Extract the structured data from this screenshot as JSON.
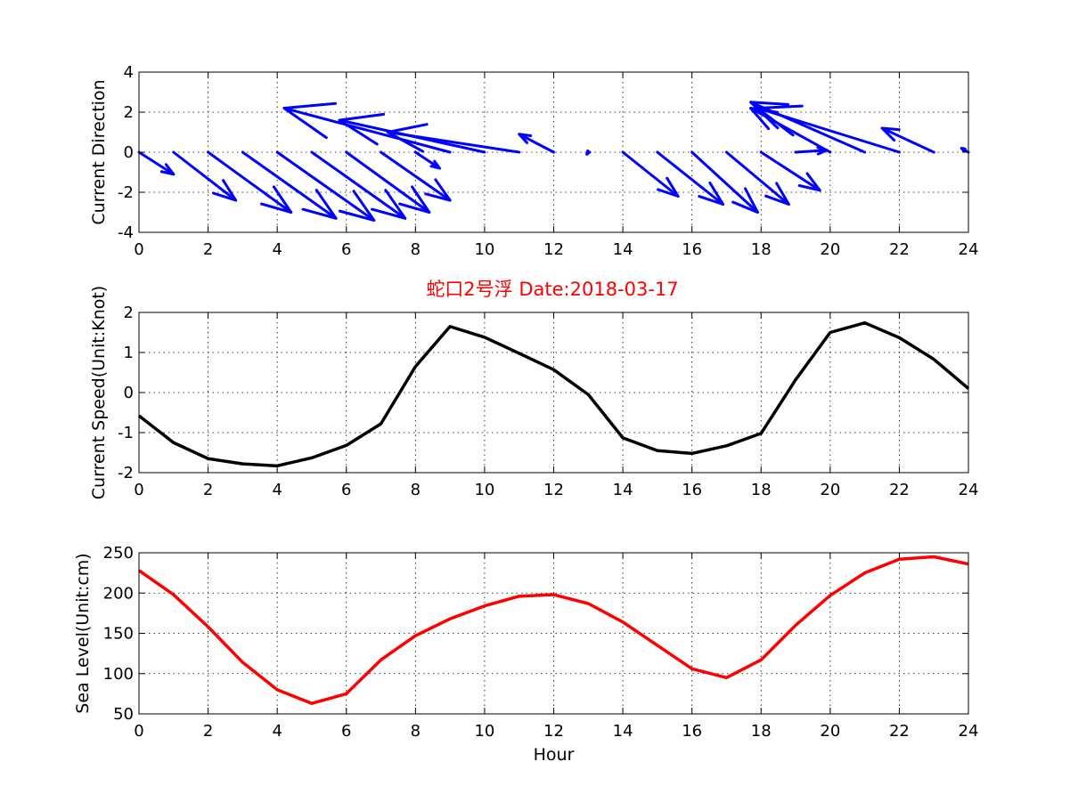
{
  "title": "蛇口2号浮   Date:2018-03-17",
  "colors": {
    "title": "#ff0000",
    "direction": "#0000ff",
    "speed": "#000000",
    "sea_level": "#ff0000"
  },
  "chart_data": [
    {
      "type": "quiver",
      "ylabel": "Current Direction",
      "xlabel": "",
      "xlim": [
        0,
        24
      ],
      "ylim": [
        -4,
        4
      ],
      "xticks": [
        0,
        2,
        4,
        6,
        8,
        10,
        12,
        14,
        16,
        18,
        20,
        22,
        24
      ],
      "yticks": [
        -4,
        -2,
        0,
        2,
        4
      ],
      "grid": true,
      "vectors": [
        {
          "x": 0,
          "u": 1.0,
          "v": -1.1
        },
        {
          "x": 1,
          "u": 1.8,
          "v": -2.4
        },
        {
          "x": 2,
          "u": 2.4,
          "v": -3.0
        },
        {
          "x": 3,
          "u": 2.7,
          "v": -3.3
        },
        {
          "x": 4,
          "u": 2.8,
          "v": -3.4
        },
        {
          "x": 5,
          "u": 2.7,
          "v": -3.3
        },
        {
          "x": 6,
          "u": 2.4,
          "v": -3.0
        },
        {
          "x": 7,
          "u": 2.0,
          "v": -2.4
        },
        {
          "x": 8,
          "u": 0.7,
          "v": -0.8
        },
        {
          "x": 9,
          "u": -4.8,
          "v": 2.2
        },
        {
          "x": 10,
          "u": -4.2,
          "v": 1.6
        },
        {
          "x": 11,
          "u": -3.8,
          "v": 1.0
        },
        {
          "x": 12,
          "u": -1.0,
          "v": 0.9
        },
        {
          "x": 13,
          "u": -0.04,
          "v": -0.1
        },
        {
          "x": 14,
          "u": 1.6,
          "v": -2.2
        },
        {
          "x": 15,
          "u": 1.9,
          "v": -2.6
        },
        {
          "x": 16,
          "u": 1.9,
          "v": -3.0
        },
        {
          "x": 17,
          "u": 1.8,
          "v": -2.6
        },
        {
          "x": 18,
          "u": 1.7,
          "v": -1.9
        },
        {
          "x": 19,
          "u": 0.9,
          "v": 0.1
        },
        {
          "x": 20,
          "u": -2.3,
          "v": 2.2
        },
        {
          "x": 21,
          "u": -3.3,
          "v": 2.5
        },
        {
          "x": 22,
          "u": -4.1,
          "v": 2.2
        },
        {
          "x": 23,
          "u": -1.5,
          "v": 1.2
        },
        {
          "x": 24,
          "u": -0.2,
          "v": 0.2
        }
      ]
    },
    {
      "type": "line",
      "ylabel": "Current Speed(Unit:Knot)",
      "xlabel": "",
      "xlim": [
        0,
        24
      ],
      "ylim": [
        -2,
        2
      ],
      "xticks": [
        0,
        2,
        4,
        6,
        8,
        10,
        12,
        14,
        16,
        18,
        20,
        22,
        24
      ],
      "yticks": [
        -2,
        -1,
        0,
        1,
        2
      ],
      "grid": true,
      "x": [
        0,
        1,
        2,
        3,
        4,
        5,
        6,
        7,
        8,
        9,
        10,
        11,
        12,
        13,
        14,
        15,
        16,
        17,
        18,
        19,
        20,
        21,
        22,
        23,
        24
      ],
      "y": [
        -0.58,
        -1.25,
        -1.65,
        -1.78,
        -1.83,
        -1.63,
        -1.32,
        -0.78,
        0.65,
        1.65,
        1.38,
        0.98,
        0.57,
        -0.05,
        -1.13,
        -1.45,
        -1.52,
        -1.33,
        -1.02,
        0.32,
        1.5,
        1.74,
        1.37,
        0.83,
        0.1
      ]
    },
    {
      "type": "line",
      "ylabel": "Sea Level(Unit:cm)",
      "xlabel": "Hour",
      "xlim": [
        0,
        24
      ],
      "ylim": [
        50,
        250
      ],
      "xticks": [
        0,
        2,
        4,
        6,
        8,
        10,
        12,
        14,
        16,
        18,
        20,
        22,
        24
      ],
      "yticks": [
        50,
        100,
        150,
        200,
        250
      ],
      "grid": true,
      "x": [
        0,
        1,
        2,
        3,
        4,
        5,
        6,
        7,
        8,
        9,
        10,
        11,
        12,
        13,
        14,
        15,
        16,
        17,
        18,
        19,
        20,
        21,
        22,
        23,
        24
      ],
      "y": [
        228,
        198,
        158,
        114,
        80,
        63,
        75,
        117,
        147,
        168,
        184,
        196,
        198,
        187,
        164,
        135,
        106,
        95,
        117,
        160,
        197,
        225,
        242,
        245,
        236
      ]
    }
  ]
}
